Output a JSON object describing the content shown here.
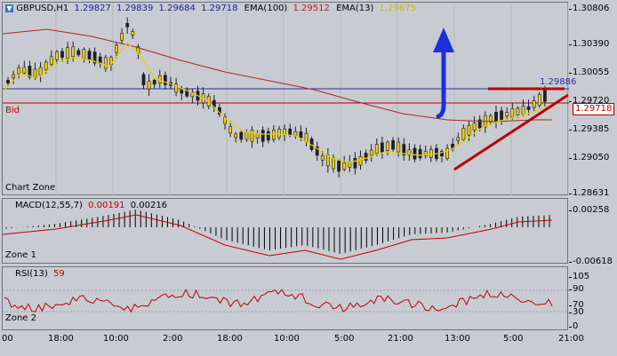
{
  "header": {
    "symbol": "GBPUSD,H1",
    "ohlc": [
      "1.29827",
      "1.29839",
      "1.29684",
      "1.29718"
    ],
    "ema100_label": "EMA(100)",
    "ema100_value": "1.29512",
    "ema13_label": "EMA(13)",
    "ema13_value": "1.29675"
  },
  "main": {
    "zone_label": "Chart Zone",
    "bid_label": "Bid",
    "price_ticks": [
      "1.30806",
      "1.30390",
      "1.30055",
      "1.29720",
      "1.29385",
      "1.29050",
      "1.28631"
    ],
    "hline_price": "1.29886",
    "bid_price": "1.29718"
  },
  "macd": {
    "label": "MACD(12,55,7)",
    "value1": "0.00191",
    "value2": "0.00216",
    "zone_label": "Zone 1",
    "ticks": [
      "0.00258",
      "-0.00618"
    ]
  },
  "rsi": {
    "label": "RSI(13)",
    "value": "59",
    "zone_label": "Zone 2",
    "ticks": [
      "105",
      "90",
      "70",
      "30",
      "0"
    ]
  },
  "time_axis": [
    "00",
    "18:00",
    "10:00",
    "2:00",
    "18:00",
    "10:00",
    "5:00",
    "21:00",
    "13:00",
    "5:00",
    "21:00"
  ],
  "colors": {
    "background": "#c8ccd2",
    "bull_candle": "#f0d000",
    "bear_candle": "#202020",
    "ema100": "#b22222",
    "ema13": "#e6d300",
    "arrow": "#1c2fd9",
    "trendline": "#c00000",
    "hline": "#2c2c9c",
    "ohlc_text": "#1a1aa0"
  },
  "icons": {
    "arrow": "up-arrow-icon",
    "symbol_menu": "chevron-down-icon"
  }
}
